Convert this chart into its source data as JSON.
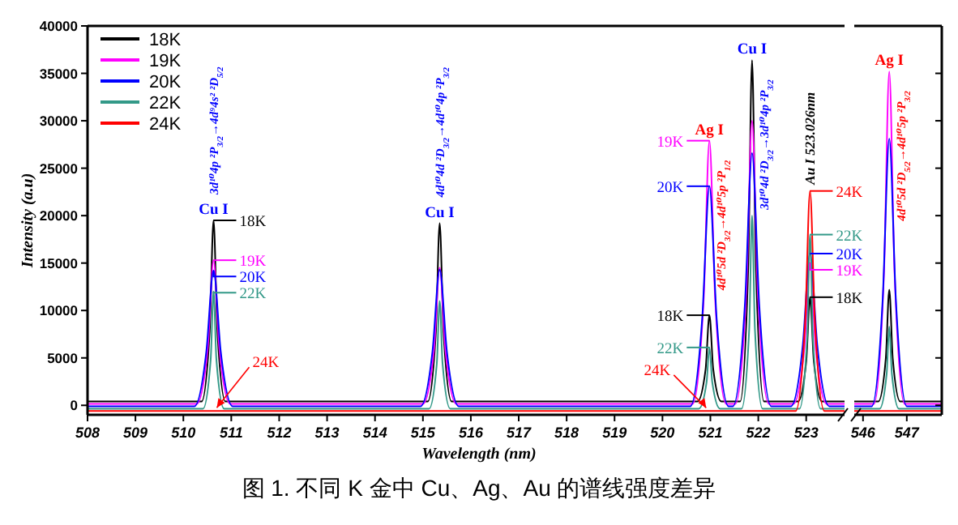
{
  "chart_data": [
    {
      "type": "line",
      "title": "图 1. 不同 K 金中 Cu、Ag、Au 的谱线强度差异",
      "xlabel": "Wavelength (nm)",
      "ylabel": "Intensity (a.u)",
      "series": [
        {
          "name": "18K",
          "color": "#000000",
          "x": [
            508,
            510.38,
            510.55,
            510.63,
            510.71,
            510.88,
            515.1,
            515.27,
            515.35,
            515.43,
            515.6,
            520.73,
            520.9,
            520.98,
            521.06,
            521.23,
            521.62,
            521.79,
            521.87,
            521.95,
            522.12,
            522.83,
            523.0,
            523.08,
            523.16,
            523.33,
            523.8
          ],
          "values": [
            400,
            400,
            7800,
            19500,
            7800,
            400,
            400,
            7700,
            19200,
            7700,
            400,
            400,
            3800,
            9500,
            3800,
            400,
            400,
            14600,
            36400,
            14600,
            400,
            400,
            4600,
            11400,
            4600,
            400,
            400
          ]
        },
        {
          "name": "19K",
          "color": "#ff00ff",
          "x": [
            508,
            510.28,
            510.51,
            510.63,
            510.75,
            510.98,
            515.0,
            515.23,
            515.35,
            515.47,
            515.7,
            520.63,
            520.86,
            520.98,
            521.1,
            521.33,
            521.52,
            521.75,
            521.87,
            521.99,
            522.22,
            522.73,
            522.96,
            523.08,
            523.2,
            523.43,
            523.8
          ],
          "values": [
            150,
            150,
            6100,
            15300,
            6100,
            150,
            150,
            5800,
            14500,
            5800,
            150,
            150,
            11200,
            27900,
            11200,
            150,
            150,
            12000,
            30000,
            12000,
            150,
            150,
            6000,
            15000,
            6000,
            150,
            150
          ]
        },
        {
          "name": "20K",
          "color": "#0000ff",
          "x": [
            508,
            510.23,
            510.48,
            510.63,
            510.78,
            511.03,
            514.95,
            515.2,
            515.35,
            515.5,
            515.75,
            520.58,
            520.83,
            520.98,
            521.13,
            521.38,
            521.47,
            521.72,
            521.87,
            522.02,
            522.27,
            522.68,
            522.93,
            523.08,
            523.23,
            523.48,
            523.8
          ],
          "values": [
            -100,
            -100,
            5700,
            14200,
            5700,
            -100,
            -100,
            5700,
            14300,
            5700,
            -100,
            -100,
            9200,
            23100,
            9200,
            -100,
            -100,
            10600,
            26600,
            10600,
            -100,
            -100,
            6400,
            16000,
            6400,
            -100,
            -100
          ]
        },
        {
          "name": "22K",
          "color": "#339988",
          "x": [
            508,
            510.41,
            510.57,
            510.63,
            510.69,
            510.85,
            515.13,
            515.29,
            515.35,
            515.41,
            515.57,
            520.76,
            520.92,
            520.98,
            521.04,
            521.2,
            521.65,
            521.81,
            521.87,
            521.93,
            522.09,
            522.86,
            523.02,
            523.08,
            523.14,
            523.3,
            523.8
          ],
          "values": [
            -350,
            -350,
            4800,
            12000,
            4800,
            -350,
            -350,
            4400,
            11000,
            4400,
            -350,
            -350,
            2400,
            6100,
            2400,
            -350,
            -350,
            8000,
            20000,
            8000,
            -350,
            -350,
            7200,
            18000,
            7200,
            -350,
            -350
          ]
        },
        {
          "name": "24K",
          "color": "#ff0000",
          "x": [
            508,
            522.78,
            522.98,
            523.08,
            523.18,
            523.38,
            523.8
          ],
          "values": [
            -600,
            -600,
            9000,
            22600,
            9000,
            -600,
            -600
          ]
        }
      ],
      "xlim": [
        508,
        523.8
      ],
      "xticks": [
        508,
        509,
        510,
        511,
        512,
        513,
        514,
        515,
        516,
        517,
        518,
        519,
        520,
        521,
        522,
        523
      ],
      "ylim": [
        -1000,
        40000
      ],
      "yticks": [
        0,
        5000,
        10000,
        15000,
        20000,
        25000,
        30000,
        35000,
        40000
      ],
      "legend": "top left",
      "annotations": [
        {
          "text": "Cu I",
          "x": 510.63,
          "y": 19500
        },
        {
          "text": "3d¹⁰4p ²P$_{3/2}$→4d⁹4s² ²D$_{5/2}$",
          "x": 510.63,
          "y": 19500
        },
        {
          "text": "18K",
          "x": 510.63,
          "y": 19500
        },
        {
          "text": "19K",
          "x": 510.63,
          "y": 15300
        },
        {
          "text": "20K",
          "x": 510.63,
          "y": 14200
        },
        {
          "text": "22K",
          "x": 510.63,
          "y": 12000
        },
        {
          "text": "24K",
          "x": 510.63,
          "y": -600
        },
        {
          "text": "Cu I",
          "x": 515.35,
          "y": 19200
        },
        {
          "text": "4d¹⁰4d ²D$_{3/2}$→4d¹⁰4p ²P$_{3/2}$",
          "x": 515.35,
          "y": 19200
        },
        {
          "text": "Ag I",
          "x": 520.98,
          "y": 27900
        },
        {
          "text": "4d¹⁰5d ²D$_{3/2}$→4d¹⁰5p ²P$_{1/2}$",
          "x": 520.98,
          "y": 27900
        },
        {
          "text": "19K",
          "x": 520.98,
          "y": 27900
        },
        {
          "text": "20K",
          "x": 520.98,
          "y": 23100
        },
        {
          "text": "18K",
          "x": 520.98,
          "y": 9500
        },
        {
          "text": "22K",
          "x": 520.98,
          "y": 6100
        },
        {
          "text": "24K",
          "x": 520.98,
          "y": -600
        },
        {
          "text": "Cu I",
          "x": 521.87,
          "y": 36400
        },
        {
          "text": "3d¹⁰4d ²D$_{3/2}$→3d¹⁰4p ²P$_{3/2}$",
          "x": 521.87,
          "y": 36400
        },
        {
          "text": "Au I 523.026nm",
          "x": 523.08,
          "y": 22600
        },
        {
          "text": "24K",
          "x": 523.08,
          "y": 22600
        },
        {
          "text": "22K",
          "x": 523.08,
          "y": 18000
        },
        {
          "text": "20K",
          "x": 523.08,
          "y": 16000
        },
        {
          "text": "19K",
          "x": 523.08,
          "y": 15000
        },
        {
          "text": "18K",
          "x": 523.08,
          "y": 11400
        }
      ]
    },
    {
      "type": "line",
      "series": [
        {
          "color": "#000000",
          "x": [
            545.8,
            546.35,
            546.52,
            546.6,
            546.68,
            546.85,
            547.8
          ],
          "values": [
            400,
            400,
            4900,
            12200,
            4900,
            400,
            400
          ]
        },
        {
          "color": "#ff00ff",
          "x": [
            545.8,
            546.25,
            546.48,
            546.6,
            546.72,
            546.95,
            547.8
          ],
          "values": [
            150,
            150,
            14100,
            35200,
            14100,
            150,
            150
          ]
        },
        {
          "color": "#0000ff",
          "x": [
            545.8,
            546.2,
            546.45,
            546.6,
            546.75,
            547.0,
            547.8
          ],
          "values": [
            -100,
            -100,
            11200,
            28100,
            11200,
            -100,
            -100
          ]
        },
        {
          "color": "#339988",
          "x": [
            545.8,
            546.38,
            546.54,
            546.6,
            546.66,
            546.82,
            547.8
          ],
          "values": [
            -350,
            -350,
            3300,
            8300,
            3300,
            -350,
            -350
          ]
        },
        {
          "color": "#ff0000",
          "x": [
            545.8,
            547.8
          ],
          "values": [
            -600,
            -600
          ]
        }
      ],
      "xlim": [
        545.8,
        547.8
      ],
      "xticks": [
        546,
        547
      ],
      "ylim": [
        -1000,
        40000
      ],
      "yticks": [
        0,
        5000,
        10000,
        15000,
        20000,
        25000,
        30000,
        35000,
        40000
      ],
      "tick_labels": "x",
      "annotations": [
        {
          "text": "Ag I",
          "x": 546.6,
          "y": 35200
        },
        {
          "text": "4d¹⁰5d ²D$_{5/2}$→4d¹⁰5p ²P$_{3/2}$",
          "x": 546.6,
          "y": 35200
        }
      ]
    }
  ]
}
